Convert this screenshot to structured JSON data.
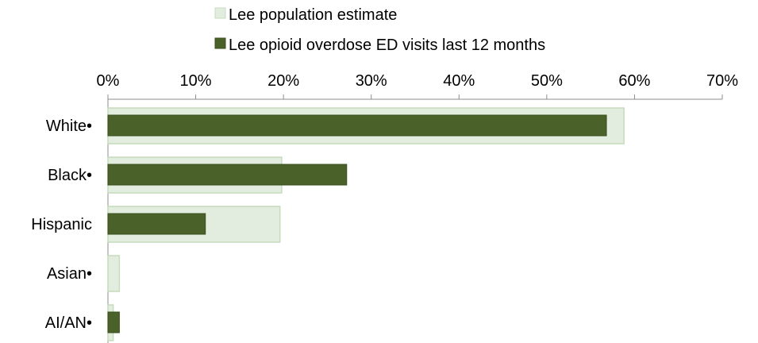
{
  "chart_data": {
    "type": "bar",
    "orientation": "horizontal",
    "categories": [
      "White•",
      "Black•",
      "Hispanic",
      "Asian•",
      "AI/AN•"
    ],
    "series": [
      {
        "name": "Lee population estimate",
        "values": [
          58.8,
          19.8,
          19.6,
          1.3,
          0.6
        ]
      },
      {
        "name": "Lee opioid overdose ED visits last 12 months",
        "values": [
          56.8,
          27.2,
          11.1,
          0,
          1.3
        ]
      }
    ],
    "x_ticks": [
      "0%",
      "10%",
      "20%",
      "30%",
      "40%",
      "50%",
      "60%",
      "70%"
    ],
    "xlim": [
      0,
      70
    ],
    "axis_position": "top",
    "legend_position": "top",
    "grid": false,
    "colors": {
      "population_fill": "#e2ecdf",
      "population_stroke": "#c6dcbc",
      "visits_fill": "#4a6229",
      "visits_stroke": "#3a4f1e",
      "axis": "#8c8c8c"
    }
  }
}
